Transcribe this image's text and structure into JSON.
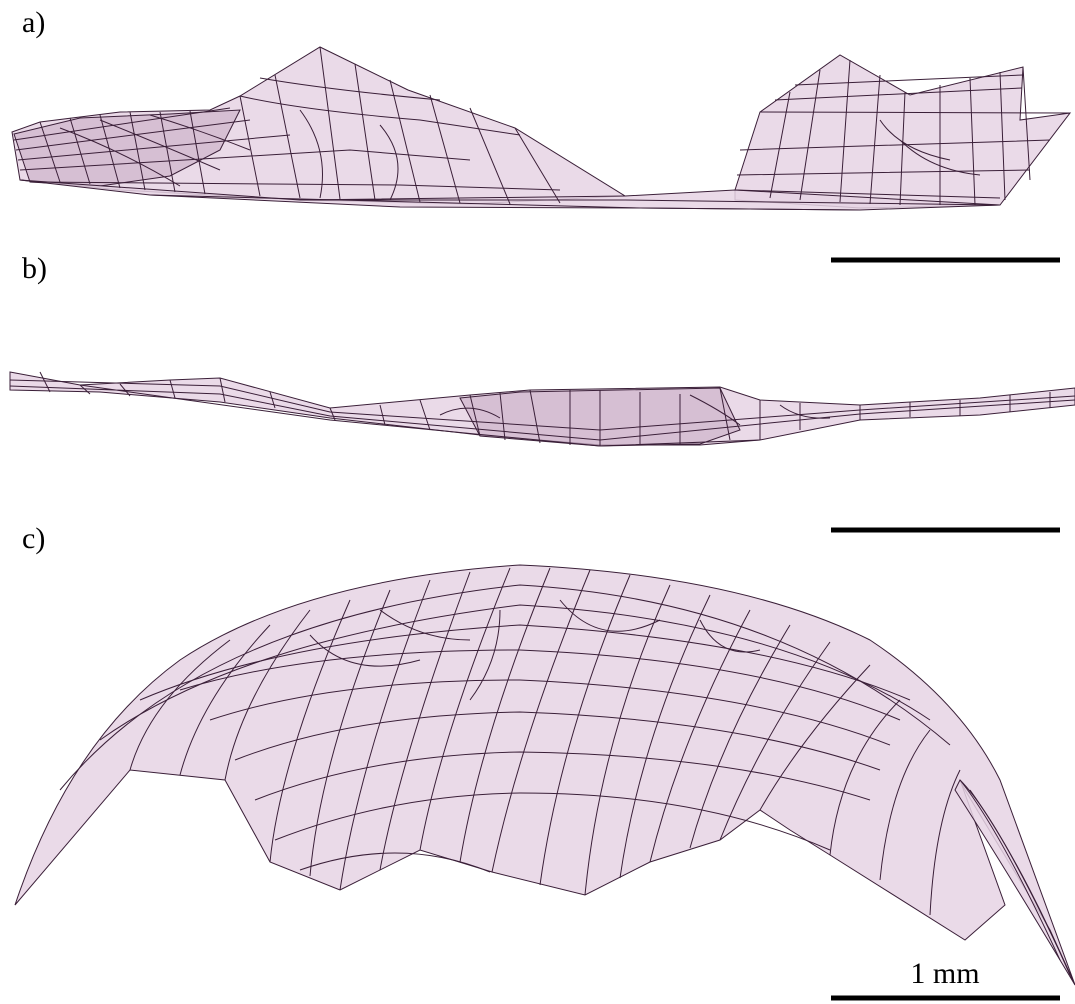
{
  "panels": [
    {
      "id": "a",
      "label": "a)"
    },
    {
      "id": "b",
      "label": "b)"
    },
    {
      "id": "c",
      "label": "c)"
    }
  ],
  "scale_bar": {
    "label": "1 mm"
  },
  "colors": {
    "mesh_fill": "#e6d4e4",
    "mesh_line": "#3a1f38",
    "background": "#ffffff"
  }
}
